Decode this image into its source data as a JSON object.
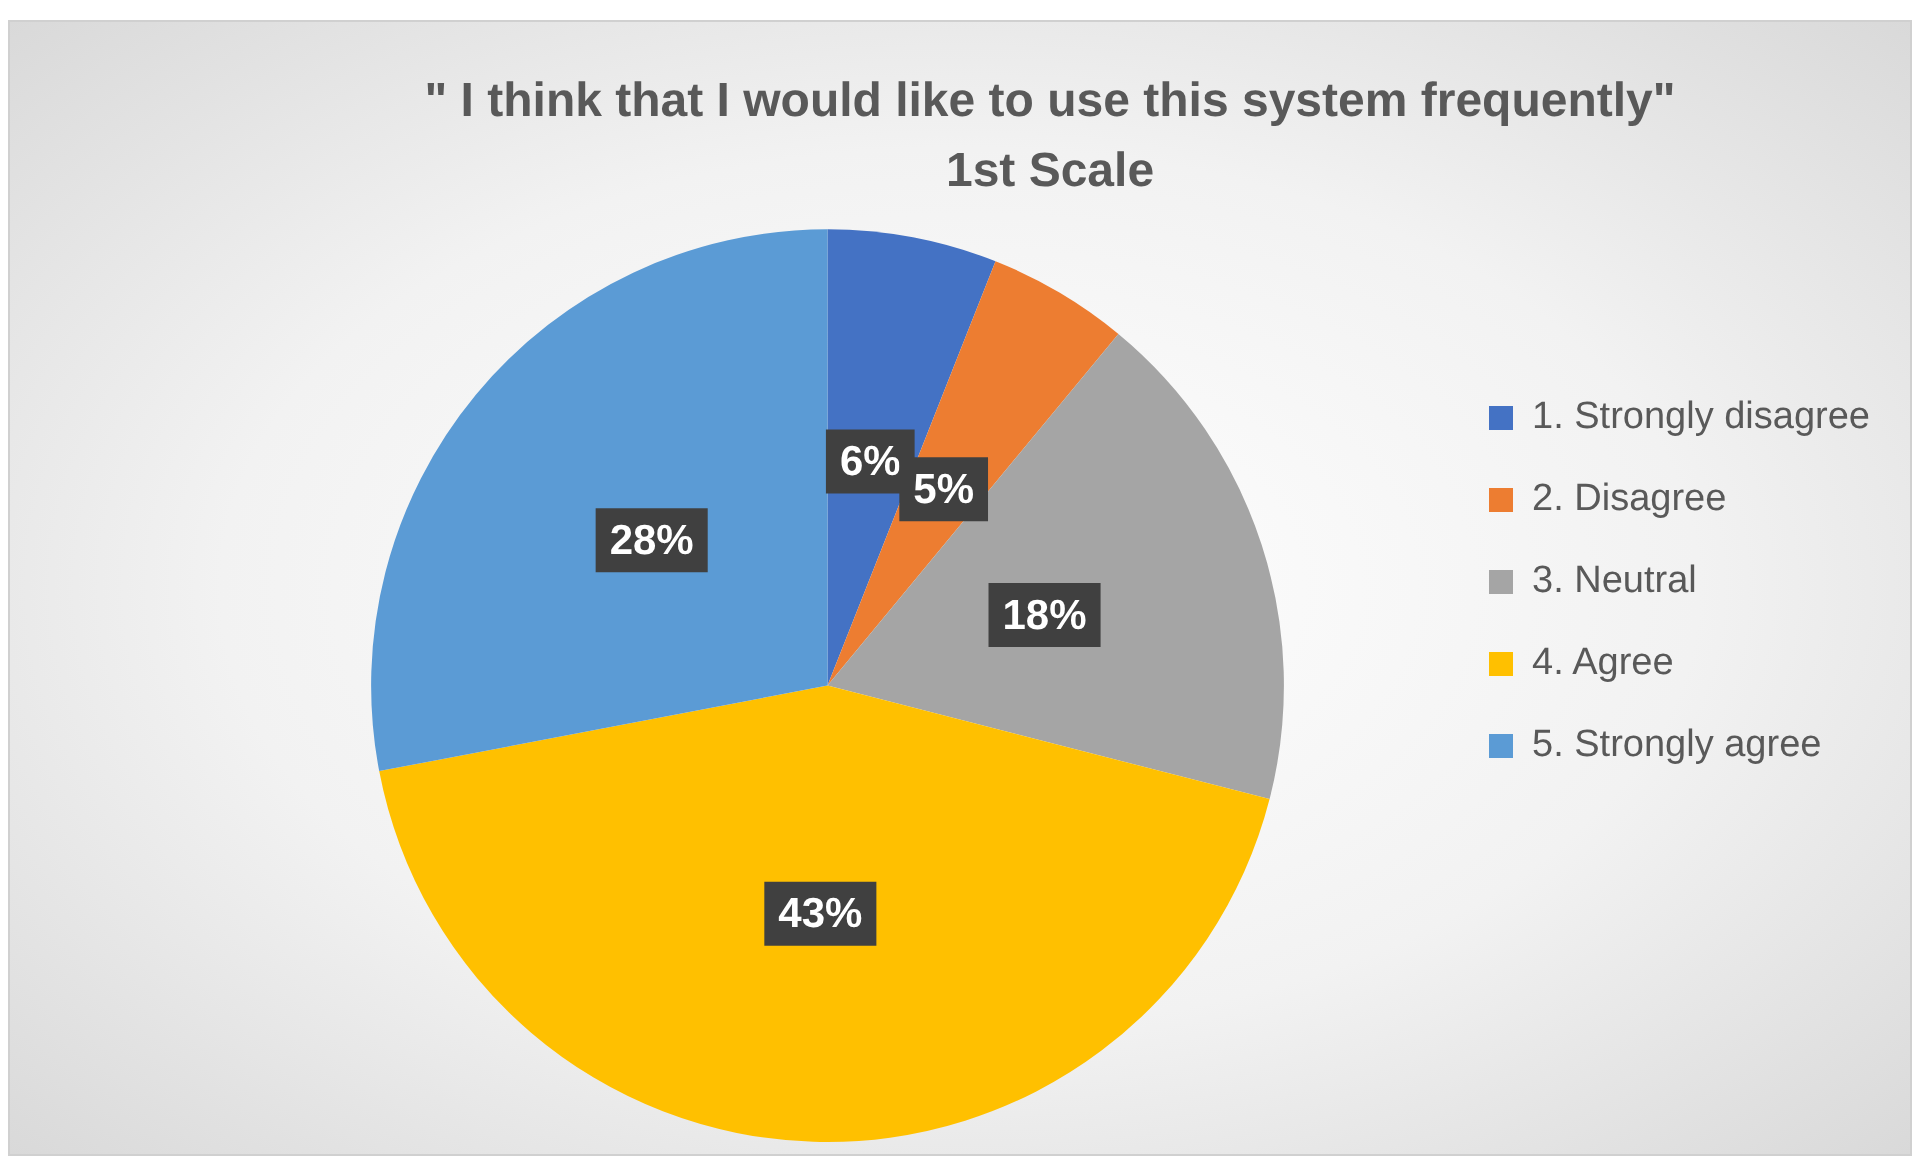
{
  "chart_data": {
    "type": "pie",
    "title": "\" I think that I would like to use this system frequently\"",
    "subtitle": "1st Scale",
    "categories": [
      "1. Strongly disagree",
      "2. Disagree",
      "3. Neutral",
      "4. Agree",
      "5. Strongly agree"
    ],
    "values": [
      6,
      5,
      18,
      43,
      28
    ],
    "colors": [
      "#4472c4",
      "#ed7d31",
      "#a5a5a5",
      "#ffc000",
      "#5b9bd5"
    ],
    "value_labels": [
      "6%",
      "5%",
      "18%",
      "43%",
      "28%"
    ],
    "legend": "right"
  }
}
